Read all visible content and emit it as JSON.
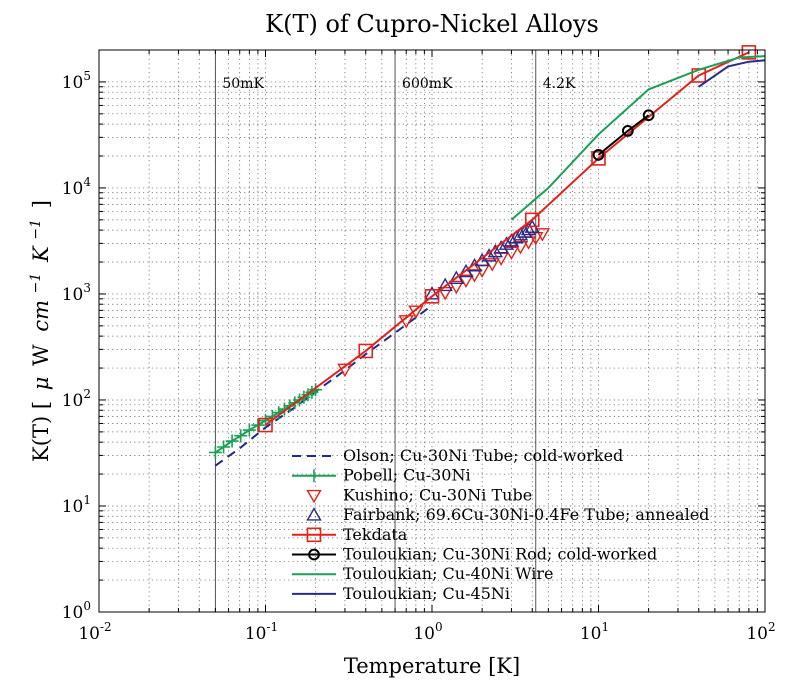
{
  "chart_data": {
    "type": "line",
    "title": "K(T) of Cupro-Nickel Alloys",
    "xlabel": "Temperature [K]",
    "ylabel_main": "K(T) [",
    "ylabel_mu": "μ",
    "ylabel_w": "W",
    "ylabel_cm": "cm",
    "ylabel_cm_exp": "−1",
    "ylabel_k": "K",
    "ylabel_k_exp": "−1",
    "ylabel_close": "]",
    "x_scale": "log",
    "y_scale": "log",
    "xlim": [
      0.01,
      100
    ],
    "ylim": [
      1,
      200000
    ],
    "grid": true,
    "legend_position": "bottom-right",
    "x_ticks": [
      {
        "value": 0.01,
        "base": "10",
        "exp": "-2"
      },
      {
        "value": 0.1,
        "base": "10",
        "exp": "-1"
      },
      {
        "value": 1,
        "base": "10",
        "exp": "0"
      },
      {
        "value": 10,
        "base": "10",
        "exp": "1"
      },
      {
        "value": 100,
        "base": "10",
        "exp": "2"
      }
    ],
    "y_ticks": [
      {
        "value": 1,
        "base": "10",
        "exp": "0"
      },
      {
        "value": 10,
        "base": "10",
        "exp": "1"
      },
      {
        "value": 100,
        "base": "10",
        "exp": "2"
      },
      {
        "value": 1000,
        "base": "10",
        "exp": "3"
      },
      {
        "value": 10000,
        "base": "10",
        "exp": "4"
      },
      {
        "value": 100000,
        "base": "10",
        "exp": "5"
      }
    ],
    "reference_lines": [
      {
        "x": 0.05,
        "label": "50mK"
      },
      {
        "x": 0.6,
        "label": "600mK"
      },
      {
        "x": 4.2,
        "label": "4.2K"
      }
    ],
    "series": [
      {
        "name": "Olson; Cu-30Ni Tube; cold-worked",
        "color": "#1f2a8c",
        "line": "dashed",
        "marker": "none",
        "x": [
          0.05,
          0.07,
          0.1,
          0.15,
          0.2,
          0.3,
          0.4,
          0.6,
          0.8,
          1.0
        ],
        "y": [
          24,
          35,
          55,
          85,
          120,
          190,
          270,
          430,
          600,
          780
        ]
      },
      {
        "name": "Pobell; Cu-30Ni",
        "color": "#1aa156",
        "line": "solid",
        "marker": "plus",
        "x": [
          0.05,
          0.056,
          0.063,
          0.071,
          0.08,
          0.09,
          0.1,
          0.11,
          0.12,
          0.13,
          0.14,
          0.15,
          0.16,
          0.17,
          0.18,
          0.19,
          0.2
        ],
        "y": [
          32,
          36,
          41,
          46,
          52,
          58,
          64,
          70,
          76,
          82,
          88,
          94,
          100,
          106,
          112,
          118,
          125
        ]
      },
      {
        "name": "Kushino; Cu-30Ni Tube",
        "color": "#e0231b",
        "line": "none",
        "marker": "triangle-down",
        "x": [
          0.3,
          0.7,
          0.8,
          1.2,
          1.4,
          1.6,
          1.8,
          2.0,
          2.3,
          2.6,
          3.0,
          3.4,
          3.8,
          4.2,
          4.6
        ],
        "y": [
          195,
          560,
          690,
          1030,
          1180,
          1350,
          1520,
          1680,
          1930,
          2180,
          2480,
          2800,
          3100,
          3400,
          3700
        ]
      },
      {
        "name": "Fairbank; 69.6Cu-30Ni-0.4Fe Tube; annealed",
        "color": "#2a2a8a",
        "line": "none",
        "marker": "triangle-up",
        "x": [
          1.0,
          1.2,
          1.4,
          1.6,
          1.8,
          2.0,
          2.2,
          2.4,
          2.6,
          2.8,
          3.0,
          3.2,
          3.4,
          3.6,
          3.8,
          4.0
        ],
        "y": [
          1000,
          1200,
          1400,
          1620,
          1840,
          2060,
          2280,
          2500,
          2720,
          2940,
          3160,
          3380,
          3600,
          3820,
          4040,
          4250
        ]
      },
      {
        "name": "Tekdata",
        "color": "#e0231b",
        "line": "solid",
        "marker": "square",
        "x": [
          0.1,
          0.4,
          1.0,
          4.0,
          10,
          40,
          80
        ],
        "y": [
          58,
          290,
          950,
          5000,
          19000,
          115000,
          190000
        ]
      },
      {
        "name": "Touloukian; Cu-30Ni Rod; cold-worked",
        "color": "#000000",
        "line": "solid",
        "marker": "circle",
        "x": [
          10,
          15,
          20
        ],
        "y": [
          20500,
          34500,
          48500
        ]
      },
      {
        "name": "Touloukian; Cu-40Ni Wire",
        "color": "#1aa156",
        "line": "solid",
        "marker": "none",
        "x": [
          3,
          5,
          10,
          20,
          40,
          70,
          100
        ],
        "y": [
          5000,
          10000,
          32000,
          85000,
          130000,
          170000,
          175000
        ]
      },
      {
        "name": "Touloukian; Cu-45Ni",
        "color": "#2a2a8a",
        "line": "solid",
        "marker": "none",
        "x": [
          40,
          60,
          80,
          100
        ],
        "y": [
          90000,
          140000,
          155000,
          160000
        ]
      }
    ]
  }
}
